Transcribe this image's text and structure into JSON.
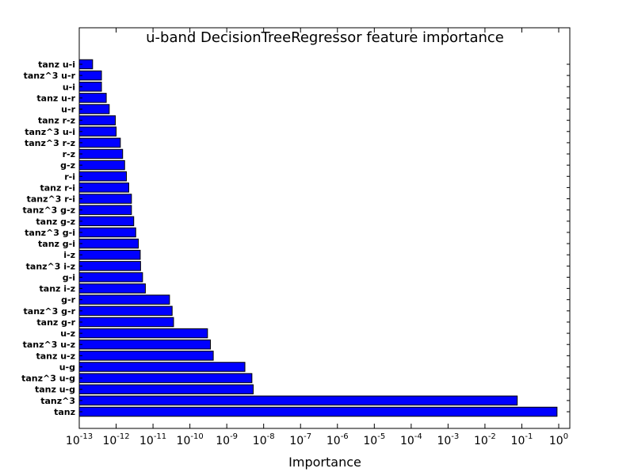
{
  "chart_data": {
    "type": "bar",
    "orientation": "horizontal",
    "title": "u-band DecisionTreeRegressor feature importance",
    "xlabel": "Importance",
    "ylabel": "",
    "xscale": "log",
    "xlim": [
      1e-13,
      3
    ],
    "grid": false,
    "bar_color": "#0000ff",
    "categories": [
      "tanz",
      "tanz^3",
      "tanz u-g",
      "tanz^3 u-g",
      "u-g",
      "tanz u-z",
      "tanz^3 u-z",
      "u-z",
      "tanz g-r",
      "tanz^3 g-r",
      "g-r",
      "tanz i-z",
      "g-i",
      "tanz^3 i-z",
      "i-z",
      "tanz g-i",
      "tanz^3 g-i",
      "tanz g-z",
      "tanz^3 g-z",
      "tanz^3 r-i",
      "tanz r-i",
      "r-i",
      "g-z",
      "r-z",
      "tanz^3 r-z",
      "tanz^3 u-i",
      "tanz r-z",
      "u-r",
      "tanz u-r",
      "u-i",
      "tanz^3 u-r",
      "tanz u-i"
    ],
    "values": [
      0.9,
      0.075,
      5.2e-09,
      4.8e-09,
      3.1e-09,
      4.3e-10,
      3.6e-10,
      3e-10,
      3.6e-11,
      3.3e-11,
      2.8e-11,
      6.2e-12,
      5.2e-12,
      4.6e-12,
      4.5e-12,
      4e-12,
      3.4e-12,
      3e-12,
      2.6e-12,
      2.6e-12,
      2.2e-12,
      1.9e-12,
      1.7e-12,
      1.5e-12,
      1.3e-12,
      1e-12,
      9.5e-13,
      6.5e-13,
      5.4e-13,
      4e-13,
      4e-13,
      2.3e-13
    ],
    "xtick_labels": [
      {
        "base": "10",
        "exp": "-13"
      },
      {
        "base": "10",
        "exp": "-12"
      },
      {
        "base": "10",
        "exp": "-11"
      },
      {
        "base": "10",
        "exp": "-10"
      },
      {
        "base": "10",
        "exp": "-9"
      },
      {
        "base": "10",
        "exp": "-8"
      },
      {
        "base": "10",
        "exp": "-7"
      },
      {
        "base": "10",
        "exp": "-6"
      },
      {
        "base": "10",
        "exp": "-5"
      },
      {
        "base": "10",
        "exp": "-4"
      },
      {
        "base": "10",
        "exp": "-3"
      },
      {
        "base": "10",
        "exp": "-2"
      },
      {
        "base": "10",
        "exp": "-1"
      },
      {
        "base": "10",
        "exp": "0"
      }
    ]
  }
}
